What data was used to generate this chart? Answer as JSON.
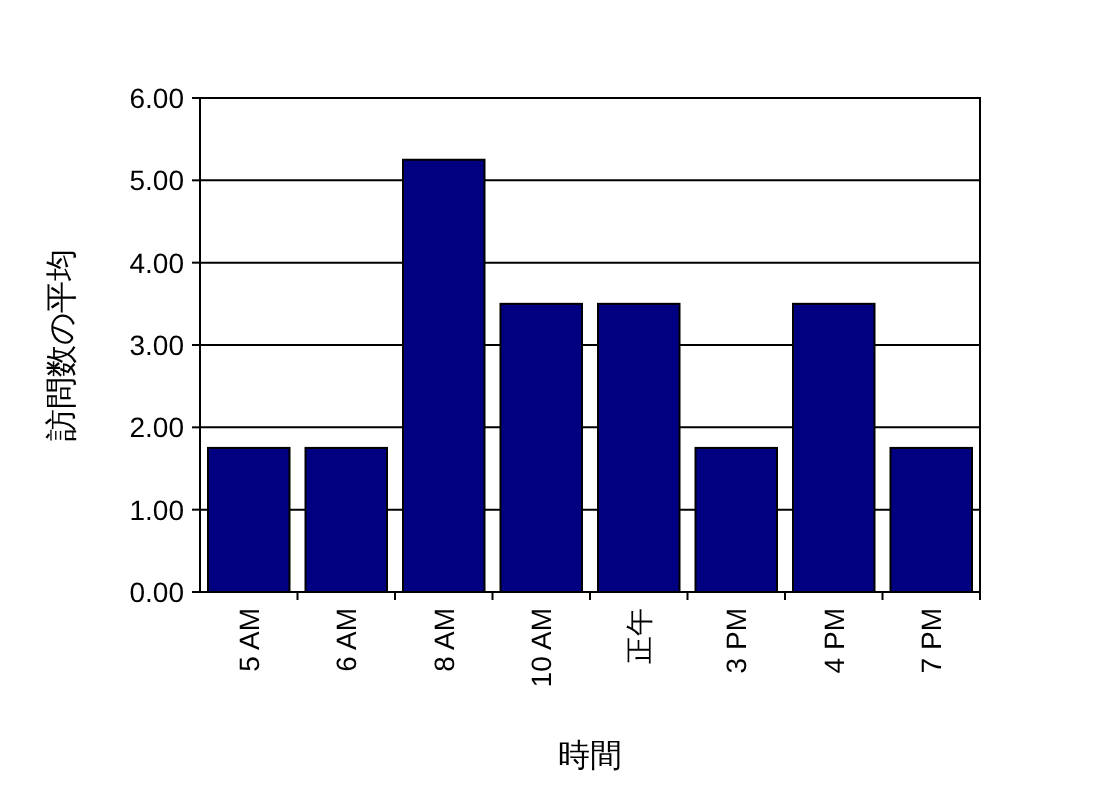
{
  "chart_data": {
    "type": "bar",
    "xlabel": "時間",
    "ylabel": "訪問数の平均",
    "categories": [
      "5 AM",
      "6 AM",
      "8 AM",
      "10 AM",
      "正午",
      "3 PM",
      "4 PM",
      "7 PM"
    ],
    "values": [
      1.75,
      1.75,
      5.25,
      3.5,
      3.5,
      1.75,
      3.5,
      1.75
    ],
    "color": "#000080",
    "ylim": [
      0,
      6
    ],
    "yticks": [
      {
        "value": 0,
        "label": "0.00"
      },
      {
        "value": 1,
        "label": "1.00"
      },
      {
        "value": 2,
        "label": "2.00"
      },
      {
        "value": 3,
        "label": "3.00"
      },
      {
        "value": 4,
        "label": "4.00"
      },
      {
        "value": 5,
        "label": "5.00"
      },
      {
        "value": 6,
        "label": "6.00"
      }
    ],
    "grid": "y"
  }
}
